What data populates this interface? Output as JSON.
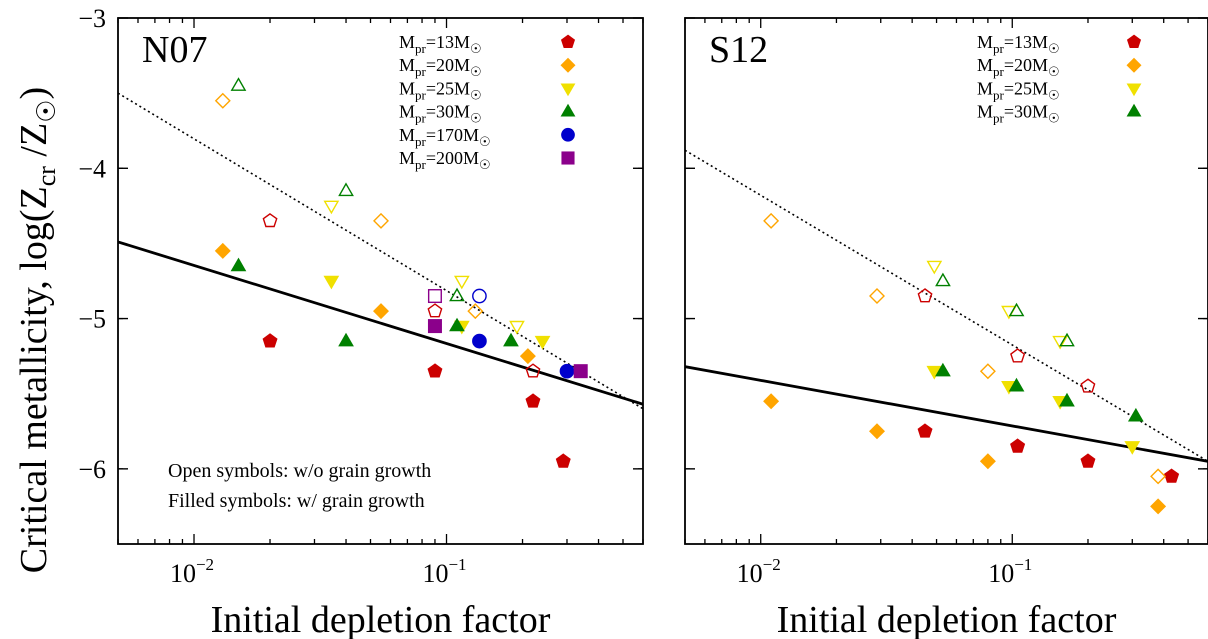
{
  "figure": {
    "ylabel_main": "Critical metallicity, log(Z",
    "ylabel_sub": "cr",
    "ylabel_mid": " /Z",
    "ylabel_end": ")",
    "xlabel": "Initial depletion factor",
    "note_open": "Open symbols: w/o grain growth",
    "note_filled": "Filled symbols: w/ grain growth"
  },
  "chart_data": [
    {
      "type": "scatter",
      "panel_label": "N07",
      "xscale": "log",
      "xlim": [
        0.005,
        0.6
      ],
      "ylim": [
        -6.5,
        -3
      ],
      "xticks": [
        {
          "v": 0.01,
          "base": "10",
          "exp": "-2"
        },
        {
          "v": 0.1,
          "base": "10",
          "exp": "-1"
        }
      ],
      "yticks": [
        -3,
        -4,
        -5,
        -6
      ],
      "xlabel": "Initial depletion factor",
      "ylabel": "Critical metallicity, log(Zcr /Z☉)",
      "legend_position": "top-right",
      "lines": [
        {
          "style": "solid",
          "points": [
            [
              0.005,
              -4.49
            ],
            [
              0.6,
              -5.57
            ]
          ]
        },
        {
          "style": "dotted",
          "points": [
            [
              0.005,
              -3.5
            ],
            [
              0.6,
              -5.6
            ]
          ]
        }
      ],
      "series": [
        {
          "name": "Mpr=13M☉",
          "mass": "13",
          "color": "#cc0000",
          "marker": "pentagon",
          "filled": [
            [
              0.02,
              -5.15
            ],
            [
              0.09,
              -5.35
            ],
            [
              0.22,
              -5.55
            ],
            [
              0.29,
              -5.95
            ]
          ],
          "open": [
            [
              0.02,
              -4.35
            ],
            [
              0.09,
              -4.95
            ],
            [
              0.22,
              -5.35
            ]
          ]
        },
        {
          "name": "Mpr=20M☉",
          "mass": "20",
          "color": "#ffa500",
          "marker": "diamond",
          "filled": [
            [
              0.013,
              -4.55
            ],
            [
              0.055,
              -4.95
            ],
            [
              0.21,
              -5.25
            ]
          ],
          "open": [
            [
              0.013,
              -3.55
            ],
            [
              0.055,
              -4.35
            ],
            [
              0.13,
              -4.95
            ]
          ]
        },
        {
          "name": "Mpr=25M☉",
          "mass": "25",
          "color": "#f0e000",
          "marker": "tri_down",
          "filled": [
            [
              0.035,
              -4.75
            ],
            [
              0.115,
              -5.05
            ],
            [
              0.24,
              -5.15
            ]
          ],
          "open": [
            [
              0.035,
              -4.25
            ],
            [
              0.115,
              -4.75
            ],
            [
              0.19,
              -5.05
            ]
          ]
        },
        {
          "name": "Mpr=30M☉",
          "mass": "30",
          "color": "#008000",
          "marker": "tri_up",
          "filled": [
            [
              0.015,
              -4.65
            ],
            [
              0.04,
              -5.15
            ],
            [
              0.11,
              -5.05
            ],
            [
              0.18,
              -5.15
            ]
          ],
          "open": [
            [
              0.015,
              -3.45
            ],
            [
              0.04,
              -4.15
            ],
            [
              0.11,
              -4.85
            ]
          ]
        },
        {
          "name": "Mpr=170M☉",
          "mass": "170",
          "color": "#0000cc",
          "marker": "circle",
          "filled": [
            [
              0.135,
              -5.15
            ],
            [
              0.3,
              -5.35
            ]
          ],
          "open": [
            [
              0.135,
              -4.85
            ]
          ]
        },
        {
          "name": "Mpr=200M☉",
          "mass": "200",
          "color": "#8b008b",
          "marker": "square",
          "filled": [
            [
              0.09,
              -5.05
            ],
            [
              0.34,
              -5.35
            ]
          ],
          "open": [
            [
              0.09,
              -4.85
            ]
          ]
        }
      ]
    },
    {
      "type": "scatter",
      "panel_label": "S12",
      "xscale": "log",
      "xlim": [
        0.005,
        0.6
      ],
      "ylim": [
        -6.5,
        -3
      ],
      "xticks": [
        {
          "v": 0.01,
          "base": "10",
          "exp": "-2"
        },
        {
          "v": 0.1,
          "base": "10",
          "exp": "-1"
        }
      ],
      "yticks": [
        -3,
        -4,
        -5,
        -6
      ],
      "xlabel": "Initial depletion factor",
      "legend_position": "top-right",
      "lines": [
        {
          "style": "solid",
          "points": [
            [
              0.005,
              -5.32
            ],
            [
              0.6,
              -5.95
            ]
          ]
        },
        {
          "style": "dotted",
          "points": [
            [
              0.005,
              -3.88
            ],
            [
              0.6,
              -5.95
            ]
          ]
        }
      ],
      "series": [
        {
          "name": "Mpr=13M☉",
          "mass": "13",
          "color": "#cc0000",
          "marker": "pentagon",
          "filled": [
            [
              0.045,
              -5.75
            ],
            [
              0.105,
              -5.85
            ],
            [
              0.2,
              -5.95
            ],
            [
              0.43,
              -6.05
            ]
          ],
          "open": [
            [
              0.045,
              -4.85
            ],
            [
              0.105,
              -5.25
            ],
            [
              0.2,
              -5.45
            ]
          ]
        },
        {
          "name": "Mpr=20M☉",
          "mass": "20",
          "color": "#ffa500",
          "marker": "diamond",
          "filled": [
            [
              0.011,
              -5.55
            ],
            [
              0.029,
              -5.75
            ],
            [
              0.08,
              -5.95
            ],
            [
              0.38,
              -6.25
            ]
          ],
          "open": [
            [
              0.011,
              -4.35
            ],
            [
              0.029,
              -4.85
            ],
            [
              0.08,
              -5.35
            ],
            [
              0.38,
              -6.05
            ]
          ]
        },
        {
          "name": "Mpr=25M☉",
          "mass": "25",
          "color": "#f0e000",
          "marker": "tri_down",
          "filled": [
            [
              0.049,
              -5.35
            ],
            [
              0.097,
              -5.45
            ],
            [
              0.155,
              -5.55
            ],
            [
              0.3,
              -5.85
            ]
          ],
          "open": [
            [
              0.049,
              -4.65
            ],
            [
              0.097,
              -4.95
            ],
            [
              0.155,
              -5.15
            ]
          ]
        },
        {
          "name": "Mpr=30M☉",
          "mass": "30",
          "color": "#008000",
          "marker": "tri_up",
          "filled": [
            [
              0.053,
              -5.35
            ],
            [
              0.104,
              -5.45
            ],
            [
              0.165,
              -5.55
            ],
            [
              0.31,
              -5.65
            ]
          ],
          "open": [
            [
              0.053,
              -4.75
            ],
            [
              0.104,
              -4.95
            ],
            [
              0.165,
              -5.15
            ]
          ]
        }
      ]
    }
  ]
}
